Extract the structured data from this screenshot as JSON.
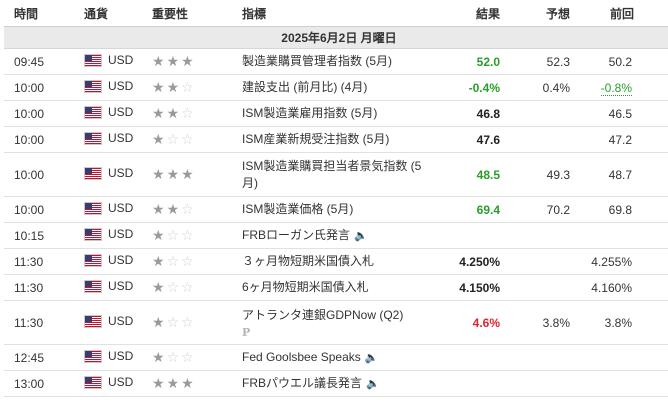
{
  "headers": {
    "time": "時間",
    "currency": "通貨",
    "importance": "重要性",
    "indicator": "指標",
    "result": "結果",
    "forecast": "予想",
    "previous": "前回"
  },
  "date_label": "2025年6月2日 月曜日",
  "rows": [
    {
      "time": "09:45",
      "currency": "USD",
      "stars": 3,
      "indicator": "製造業購買管理者指数 (5月)",
      "result": "52.0",
      "result_color": "green",
      "forecast": "52.3",
      "previous": "50.2",
      "speech": false,
      "badge": ""
    },
    {
      "time": "10:00",
      "currency": "USD",
      "stars": 2,
      "indicator": "建設支出 (前月比) (4月)",
      "result": "-0.4%",
      "result_color": "green",
      "forecast": "0.4%",
      "previous": "-0.8%",
      "previous_color": "green",
      "speech": false,
      "badge": ""
    },
    {
      "time": "10:00",
      "currency": "USD",
      "stars": 2,
      "indicator": "ISM製造業雇用指数 (5月)",
      "result": "46.8",
      "result_color": "black",
      "forecast": "",
      "previous": "46.5",
      "speech": false,
      "badge": ""
    },
    {
      "time": "10:00",
      "currency": "USD",
      "stars": 1,
      "indicator": "ISM産業新規受注指数 (5月)",
      "result": "47.6",
      "result_color": "black",
      "forecast": "",
      "previous": "47.2",
      "speech": false,
      "badge": ""
    },
    {
      "time": "10:00",
      "currency": "USD",
      "stars": 3,
      "indicator": "ISM製造業購買担当者景気指数 (5月)",
      "result": "48.5",
      "result_color": "green",
      "forecast": "49.3",
      "previous": "48.7",
      "speech": false,
      "badge": "",
      "tall": true
    },
    {
      "time": "10:00",
      "currency": "USD",
      "stars": 2,
      "indicator": "ISM製造業価格 (5月)",
      "result": "69.4",
      "result_color": "green",
      "forecast": "70.2",
      "previous": "69.8",
      "speech": false,
      "badge": ""
    },
    {
      "time": "10:15",
      "currency": "USD",
      "stars": 1,
      "indicator": "FRBローガン氏発言",
      "result": "",
      "result_color": "black",
      "forecast": "",
      "previous": "",
      "speech": true,
      "badge": ""
    },
    {
      "time": "11:30",
      "currency": "USD",
      "stars": 1,
      "indicator": "３ヶ月物短期米国債入札",
      "result": "4.250%",
      "result_color": "black",
      "forecast": "",
      "previous": "4.255%",
      "speech": false,
      "badge": ""
    },
    {
      "time": "11:30",
      "currency": "USD",
      "stars": 1,
      "indicator": "6ヶ月物短期米国債入札",
      "result": "4.150%",
      "result_color": "black",
      "forecast": "",
      "previous": "4.160%",
      "speech": false,
      "badge": ""
    },
    {
      "time": "11:30",
      "currency": "USD",
      "stars": 1,
      "indicator": "アトランタ連銀GDPNow (Q2)",
      "result": "4.6%",
      "result_color": "red",
      "forecast": "3.8%",
      "previous": "3.8%",
      "speech": false,
      "badge": "P",
      "tall": true
    },
    {
      "time": "12:45",
      "currency": "USD",
      "stars": 1,
      "indicator": "Fed Goolsbee Speaks",
      "result": "",
      "result_color": "black",
      "forecast": "",
      "previous": "",
      "speech": true,
      "badge": ""
    },
    {
      "time": "13:00",
      "currency": "USD",
      "stars": 3,
      "indicator": "FRBパウエル議長発言",
      "result": "",
      "result_color": "black",
      "forecast": "",
      "previous": "",
      "speech": true,
      "badge": ""
    }
  ],
  "icons": {
    "flag": "us-flag-icon",
    "star": "star-icon",
    "speaker": "speaker-icon",
    "preliminary": "preliminary-badge-icon"
  },
  "colors": {
    "positive": "#2a9d2a",
    "negative": "#e0242b"
  }
}
